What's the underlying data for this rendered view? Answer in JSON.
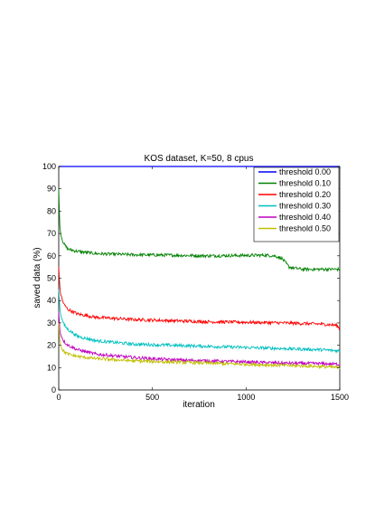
{
  "chart_data": {
    "type": "line",
    "title": "KOS dataset, K=50, 8 cpus",
    "xlabel": "iteration",
    "ylabel": "saved data (%)",
    "xlim": [
      0,
      1500
    ],
    "ylim": [
      0,
      100
    ],
    "xticks": [
      "0",
      "500",
      "1000",
      "1500"
    ],
    "yticks": [
      "0",
      "10",
      "20",
      "30",
      "40",
      "50",
      "60",
      "70",
      "80",
      "90",
      "100"
    ],
    "grid": false,
    "legend_position": "top-right",
    "series": [
      {
        "name": "threshold 0.00",
        "color": "#0000ff",
        "points": [
          [
            0,
            100
          ],
          [
            1500,
            100
          ]
        ]
      },
      {
        "name": "threshold 0.10",
        "color": "#008000",
        "points": [
          [
            0,
            90
          ],
          [
            5,
            75
          ],
          [
            10,
            70
          ],
          [
            20,
            67
          ],
          [
            30,
            65
          ],
          [
            50,
            63
          ],
          [
            100,
            62
          ],
          [
            200,
            61
          ],
          [
            400,
            60.5
          ],
          [
            600,
            60.3
          ],
          [
            800,
            60
          ],
          [
            1000,
            60.2
          ],
          [
            1100,
            60.3
          ],
          [
            1150,
            60
          ],
          [
            1190,
            59
          ],
          [
            1210,
            57
          ],
          [
            1230,
            55
          ],
          [
            1260,
            54.5
          ],
          [
            1300,
            54
          ],
          [
            1400,
            54
          ],
          [
            1500,
            54
          ]
        ]
      },
      {
        "name": "threshold 0.20",
        "color": "#ff0000",
        "points": [
          [
            0,
            55
          ],
          [
            5,
            47
          ],
          [
            10,
            43
          ],
          [
            20,
            40
          ],
          [
            30,
            38
          ],
          [
            50,
            36
          ],
          [
            100,
            34
          ],
          [
            200,
            32.5
          ],
          [
            400,
            31.5
          ],
          [
            600,
            31
          ],
          [
            800,
            30.5
          ],
          [
            1000,
            30.3
          ],
          [
            1200,
            30
          ],
          [
            1400,
            29.5
          ],
          [
            1480,
            29
          ],
          [
            1500,
            27.5
          ]
        ]
      },
      {
        "name": "threshold 0.30",
        "color": "#00bfbf",
        "points": [
          [
            0,
            45
          ],
          [
            5,
            38
          ],
          [
            10,
            34
          ],
          [
            20,
            31
          ],
          [
            30,
            29
          ],
          [
            50,
            27
          ],
          [
            100,
            24
          ],
          [
            200,
            22
          ],
          [
            400,
            20.5
          ],
          [
            600,
            20
          ],
          [
            800,
            19.5
          ],
          [
            1000,
            19
          ],
          [
            1200,
            18.5
          ],
          [
            1400,
            18
          ],
          [
            1500,
            17.5
          ]
        ]
      },
      {
        "name": "threshold 0.40",
        "color": "#bf00bf",
        "points": [
          [
            0,
            35
          ],
          [
            5,
            28
          ],
          [
            10,
            25
          ],
          [
            20,
            23
          ],
          [
            30,
            21.5
          ],
          [
            50,
            20
          ],
          [
            100,
            18
          ],
          [
            200,
            16
          ],
          [
            400,
            14.5
          ],
          [
            600,
            13.5
          ],
          [
            800,
            13
          ],
          [
            1000,
            12.5
          ],
          [
            1200,
            12
          ],
          [
            1400,
            11.8
          ],
          [
            1500,
            11.5
          ]
        ]
      },
      {
        "name": "threshold 0.50",
        "color": "#bfbf00",
        "points": [
          [
            0,
            30
          ],
          [
            5,
            23
          ],
          [
            10,
            20
          ],
          [
            20,
            18
          ],
          [
            30,
            17
          ],
          [
            50,
            16
          ],
          [
            100,
            15
          ],
          [
            200,
            14
          ],
          [
            400,
            13
          ],
          [
            600,
            12.5
          ],
          [
            800,
            12
          ],
          [
            1000,
            11.5
          ],
          [
            1200,
            11
          ],
          [
            1400,
            10.5
          ],
          [
            1500,
            10
          ]
        ]
      }
    ]
  }
}
